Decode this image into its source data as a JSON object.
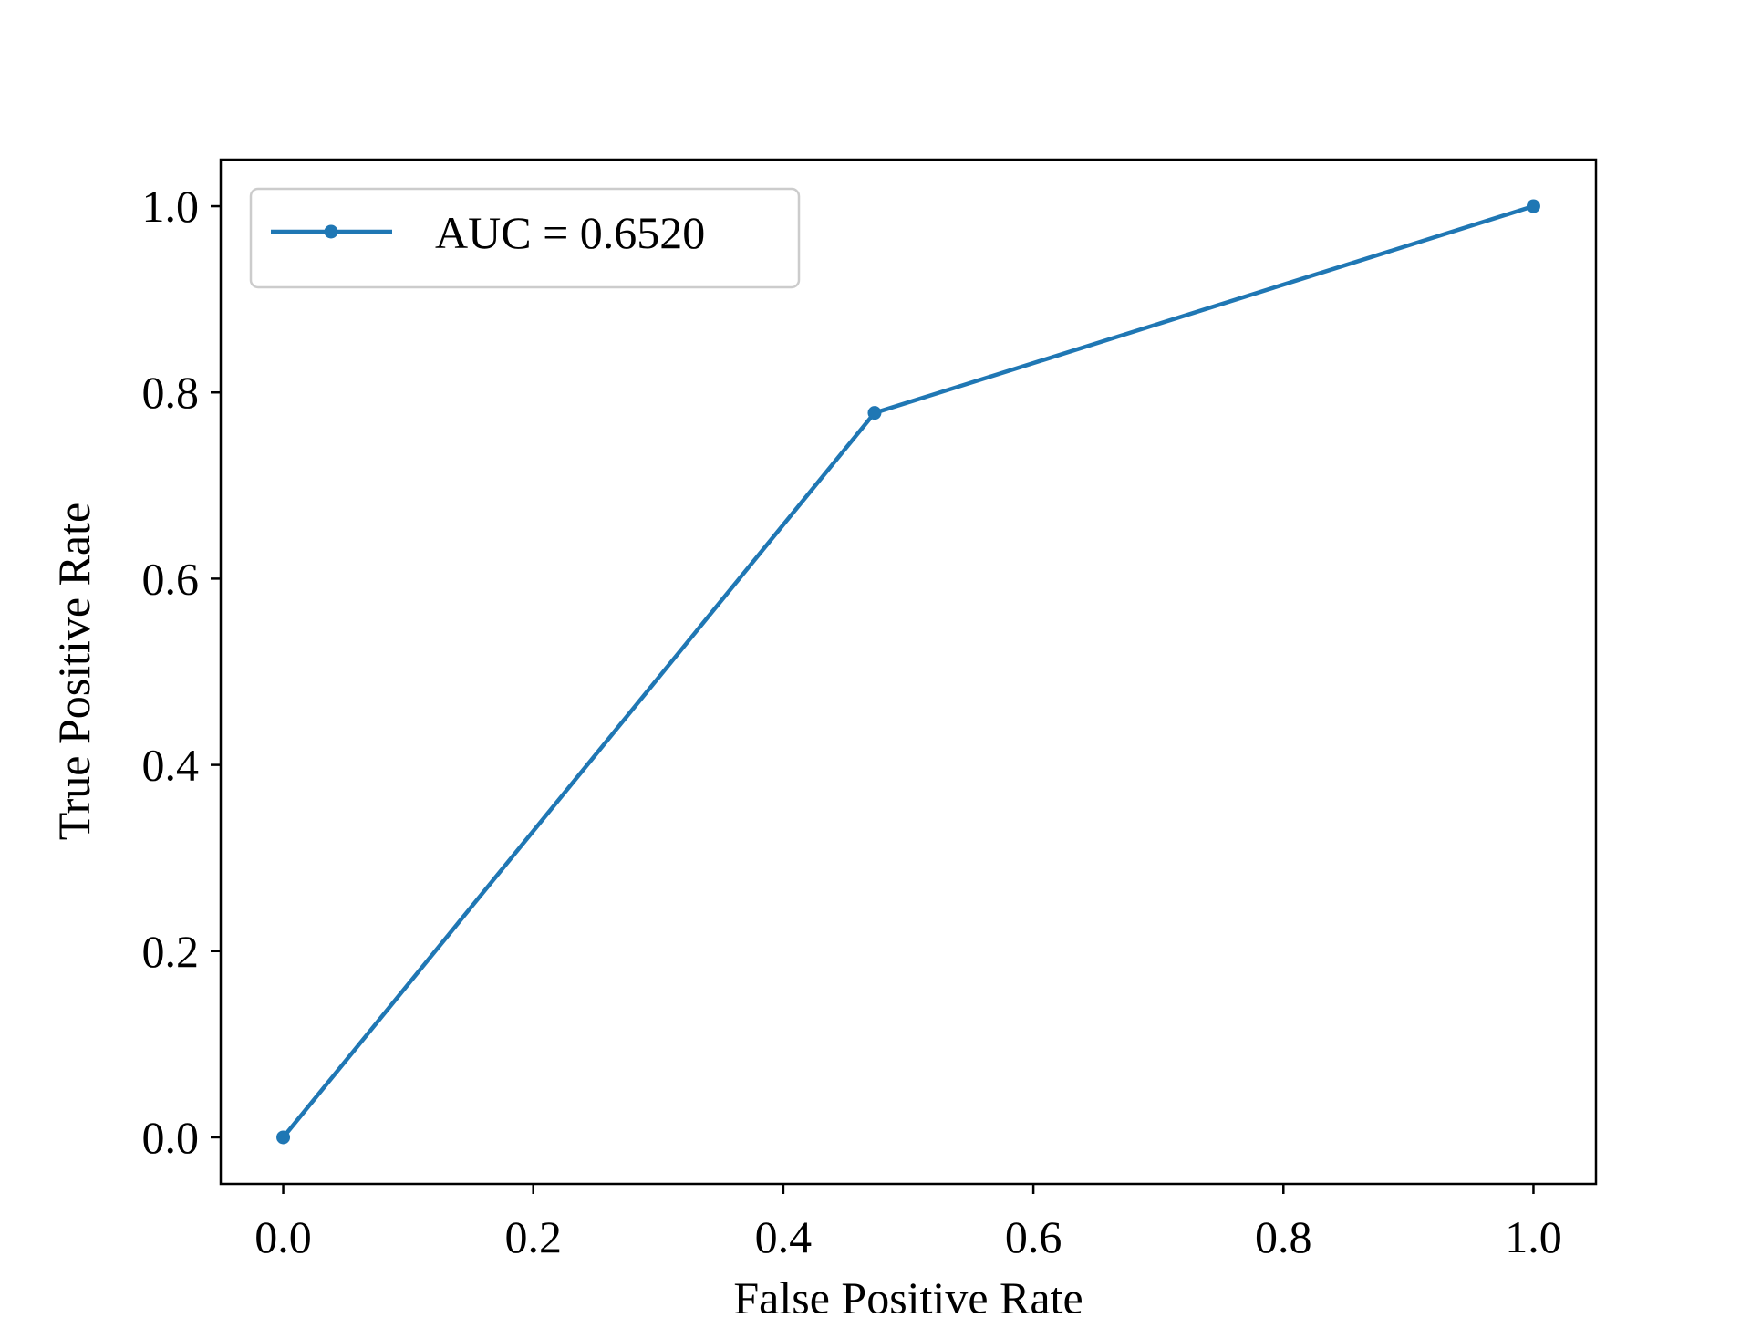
{
  "chart_data": {
    "type": "line",
    "xlabel": "False Positive Rate",
    "ylabel": "True Positive Rate",
    "xlim": [
      -0.05,
      1.05
    ],
    "ylim": [
      -0.05,
      1.05
    ],
    "xticks": [
      "0.0",
      "0.2",
      "0.4",
      "0.6",
      "0.8",
      "1.0"
    ],
    "yticks": [
      "0.0",
      "0.2",
      "0.4",
      "0.6",
      "0.8",
      "1.0"
    ],
    "grid": false,
    "legend_position": "top-left",
    "series": [
      {
        "name": "AUC = 0.6520",
        "color": "#1f77b4",
        "marker": "circle",
        "x": [
          0.0,
          0.473,
          1.0
        ],
        "y": [
          0.0,
          0.778,
          1.0
        ]
      }
    ]
  }
}
